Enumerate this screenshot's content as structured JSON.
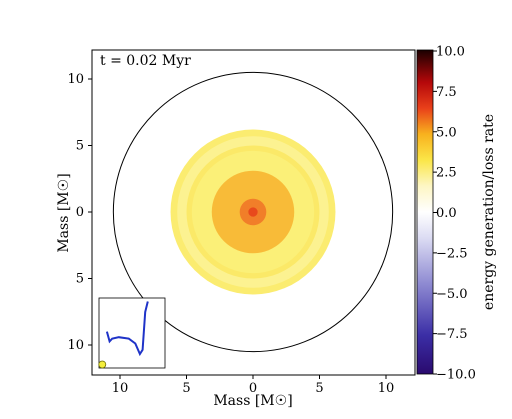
{
  "chart_data": {
    "type": "heatmap",
    "title": "",
    "time_label": "t = 0.02 Myr",
    "xlabel": "Mass [M☉]",
    "ylabel": "Mass [M☉]",
    "xlim": [
      -12,
      12
    ],
    "ylim": [
      -12,
      12
    ],
    "x_ticks": [
      -10,
      -5,
      0,
      5,
      10
    ],
    "x_tick_labels": [
      "10",
      "5",
      "0",
      "5",
      "10"
    ],
    "y_ticks": [
      10,
      5,
      0,
      -5,
      -10
    ],
    "y_tick_labels": [
      "10",
      "5",
      "0",
      "5",
      "10"
    ],
    "outer_boundary_radius": 10.5,
    "rings": [
      {
        "r_outer": 6.2,
        "r_inner": 5.7,
        "value": 1.4
      },
      {
        "r_outer": 5.7,
        "r_inner": 5.0,
        "value": 1.0
      },
      {
        "r_outer": 5.0,
        "r_inner": 4.6,
        "value": 1.6
      },
      {
        "r_outer": 4.6,
        "r_inner": 3.1,
        "value": 1.2
      },
      {
        "r_outer": 3.1,
        "r_inner": 1.0,
        "value": 3.0
      },
      {
        "r_outer": 1.0,
        "r_inner": 0.35,
        "value": 4.1
      },
      {
        "r_outer": 0.35,
        "r_inner": 0.0,
        "value": 5.2
      }
    ],
    "colorbar": {
      "label": "energy generation/loss rate",
      "min": -10,
      "max": 10,
      "ticks": [
        10.0,
        7.5,
        5.0,
        2.5,
        0.0,
        -2.5,
        -5.0,
        -7.5,
        -10.0
      ],
      "tick_labels": [
        "10.0",
        "7.5",
        "5.0",
        "2.5",
        "0.0",
        "−2.5",
        "−5.0",
        "−7.5",
        "−10.0"
      ]
    },
    "inset": {
      "description": "HR-diagram track",
      "track": [
        [
          0.12,
          0.48
        ],
        [
          0.16,
          0.62
        ],
        [
          0.2,
          0.58
        ],
        [
          0.3,
          0.56
        ],
        [
          0.45,
          0.58
        ],
        [
          0.55,
          0.65
        ],
        [
          0.62,
          0.8
        ],
        [
          0.66,
          0.74
        ],
        [
          0.7,
          0.2
        ],
        [
          0.74,
          0.05
        ]
      ],
      "marker": [
        0.05,
        0.95
      ]
    }
  },
  "colors": {
    "boundary": "#000000",
    "track": "#1f33c8",
    "marker_fill": "#f4ee3c",
    "marker_edge": "#6b6b00"
  }
}
